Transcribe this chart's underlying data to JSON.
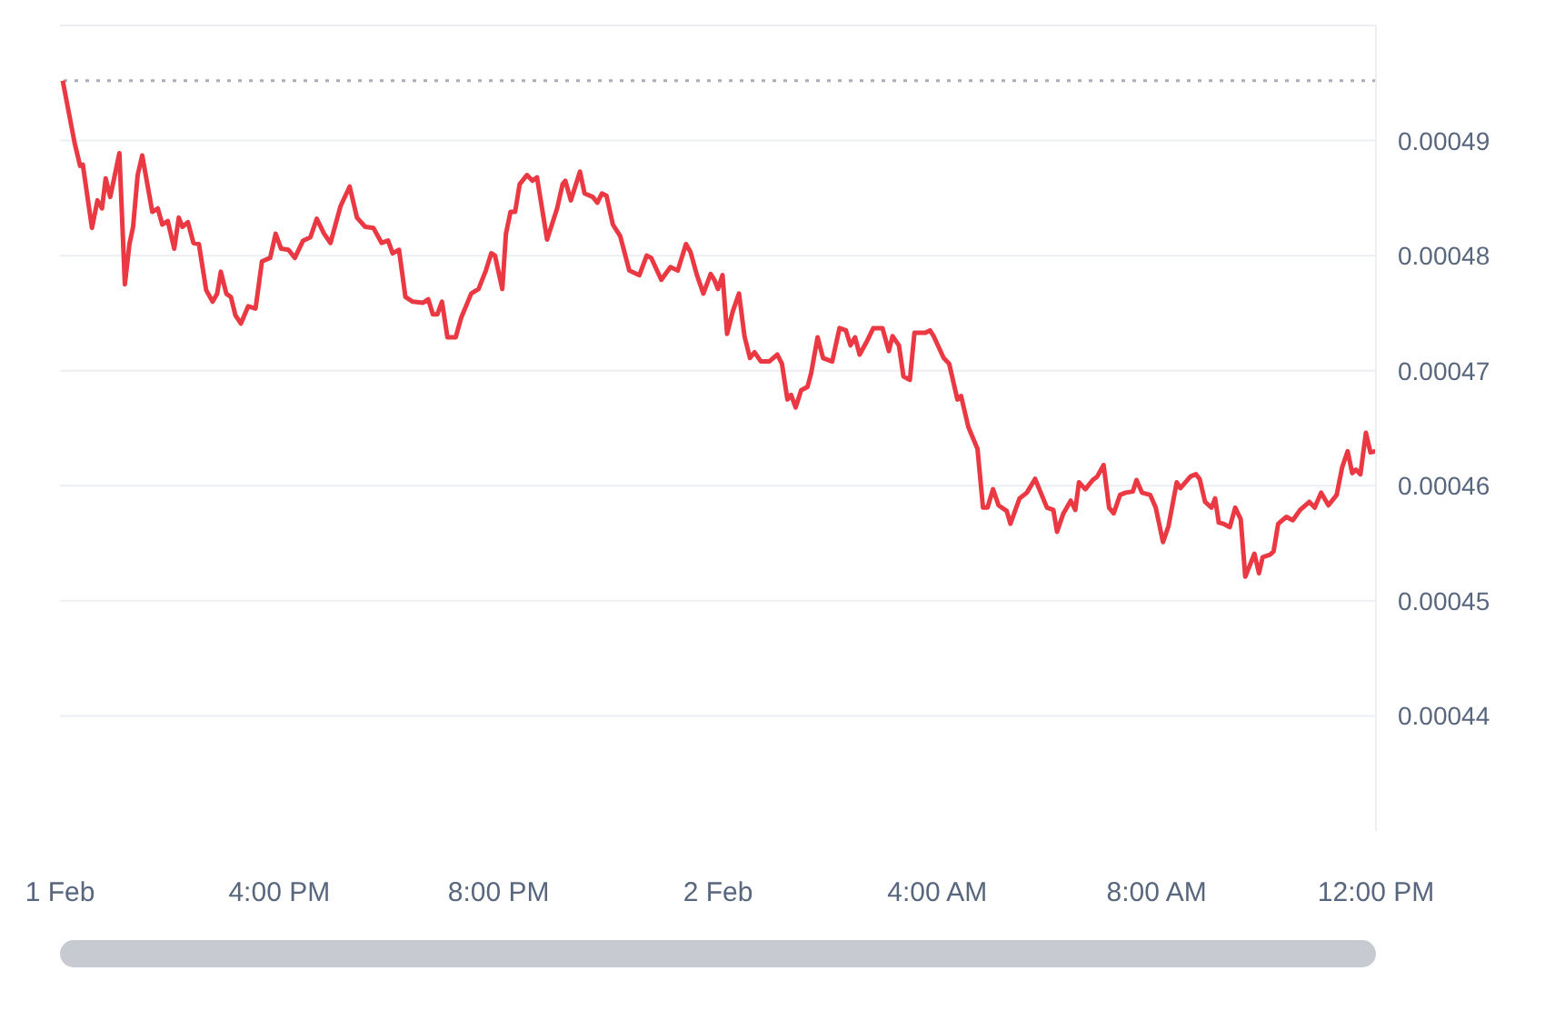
{
  "chart_data": {
    "type": "line",
    "x": [
      "--02-01T12:03",
      "--02-01T12:16",
      "--02-01T12:22",
      "--02-01T12:25",
      "--02-01T12:35",
      "--02-01T12:41",
      "--02-01T12:46",
      "--02-01T12:50",
      "--02-01T12:55",
      "--02-01T13:05",
      "--02-01T13:11",
      "--02-01T13:16",
      "--02-01T13:20",
      "--02-01T13:25",
      "--02-01T13:30",
      "--02-01T13:41",
      "--02-01T13:47",
      "--02-01T13:52",
      "--02-01T13:58",
      "--02-01T14:05",
      "--02-01T14:10",
      "--02-01T14:14",
      "--02-01T14:20",
      "--02-01T14:26",
      "--02-01T14:32",
      "--02-01T14:40",
      "--02-01T14:47",
      "--02-01T14:52",
      "--02-01T14:56",
      "--02-01T15:02",
      "--02-01T15:07",
      "--02-01T15:12",
      "--02-01T15:18",
      "--02-01T15:26",
      "--02-01T15:34",
      "--02-01T15:41",
      "--02-01T15:50",
      "--02-01T15:56",
      "--02-01T16:02",
      "--02-01T16:10",
      "--02-01T16:17",
      "--02-01T16:26",
      "--02-01T16:34",
      "--02-01T16:41",
      "--02-01T16:49",
      "--02-01T16:56",
      "--02-01T17:07",
      "--02-01T17:17",
      "--02-01T17:25",
      "--02-01T17:34",
      "--02-01T17:43",
      "--02-01T17:52",
      "--02-01T17:59",
      "--02-01T18:04",
      "--02-01T18:11",
      "--02-01T18:18",
      "--02-01T18:26",
      "--02-01T18:37",
      "--02-01T18:43",
      "--02-01T18:48",
      "--02-01T18:53",
      "--02-01T18:58",
      "--02-01T19:04",
      "--02-01T19:13",
      "--02-01T19:19",
      "--02-01T19:30",
      "--02-01T19:38",
      "--02-01T19:46",
      "--02-01T19:52",
      "--02-01T19:56",
      "--02-01T20:04",
      "--02-01T20:08",
      "--02-01T20:13",
      "--02-01T20:18",
      "--02-01T20:23",
      "--02-01T20:31",
      "--02-01T20:37",
      "--02-01T20:42",
      "--02-01T20:53",
      "--02-01T21:04",
      "--02-01T21:10",
      "--02-01T21:13",
      "--02-01T21:19",
      "--02-01T21:29",
      "--02-01T21:34",
      "--02-01T21:43",
      "--02-01T21:48",
      "--02-01T21:53",
      "--02-01T21:58",
      "--02-01T22:05",
      "--02-01T22:13",
      "--02-01T22:23",
      "--02-01T22:34",
      "--02-01T22:42",
      "--02-01T22:47",
      "--02-01T22:58",
      "--02-01T23:08",
      "--02-01T23:16",
      "--02-01T23:25",
      "--02-01T23:30",
      "--02-01T23:37",
      "--02-01T23:44",
      "--02-01T23:52",
      "--02-01T23:56",
      "--02-02T00:00",
      "--02-02T00:05",
      "--02-02T00:10",
      "--02-02T00:16",
      "--02-02T00:23",
      "--02-02T00:29",
      "--02-02T00:35",
      "--02-02T00:40",
      "--02-02T00:47",
      "--02-02T00:56",
      "--02-02T01:05",
      "--02-02T01:10",
      "--02-02T01:16",
      "--02-02T01:20",
      "--02-02T01:25",
      "--02-02T01:31",
      "--02-02T01:38",
      "--02-02T01:42",
      "--02-02T01:49",
      "--02-02T01:55",
      "--02-02T02:05",
      "--02-02T02:13",
      "--02-02T02:20",
      "--02-02T02:25",
      "--02-02T02:30",
      "--02-02T02:35",
      "--02-02T02:42",
      "--02-02T02:50",
      "--02-02T03:00",
      "--02-02T03:07",
      "--02-02T03:11",
      "--02-02T03:18",
      "--02-02T03:23",
      "--02-02T03:30",
      "--02-02T03:35",
      "--02-02T03:47",
      "--02-02T03:52",
      "--02-02T03:56",
      "--02-02T04:07",
      "--02-02T04:13",
      "--02-02T04:22",
      "--02-02T04:26",
      "--02-02T04:34",
      "--02-02T04:44",
      "--02-02T04:50",
      "--02-02T04:55",
      "--02-02T05:01",
      "--02-02T05:07",
      "--02-02T05:16",
      "--02-02T05:20",
      "--02-02T05:30",
      "--02-02T05:38",
      "--02-02T05:47",
      "--02-02T06:00",
      "--02-02T06:07",
      "--02-02T06:11",
      "--02-02T06:18",
      "--02-02T06:26",
      "--02-02T06:31",
      "--02-02T06:35",
      "--02-02T06:42",
      "--02-02T06:50",
      "--02-02T06:55",
      "--02-02T07:02",
      "--02-02T07:08",
      "--02-02T07:13",
      "--02-02T07:20",
      "--02-02T07:26",
      "--02-02T07:34",
      "--02-02T07:38",
      "--02-02T07:44",
      "--02-02T07:53",
      "--02-02T07:59",
      "--02-02T08:07",
      "--02-02T08:13",
      "--02-02T08:22",
      "--02-02T08:26",
      "--02-02T08:37",
      "--02-02T08:43",
      "--02-02T08:47",
      "--02-02T08:53",
      "--02-02T09:00",
      "--02-02T09:04",
      "--02-02T09:08",
      "--02-02T09:13",
      "--02-02T09:20",
      "--02-02T09:26",
      "--02-02T09:32",
      "--02-02T09:37",
      "--02-02T09:43",
      "--02-02T09:47",
      "--02-02T09:52",
      "--02-02T09:56",
      "--02-02T10:04",
      "--02-02T10:08",
      "--02-02T10:13",
      "--02-02T10:22",
      "--02-02T10:29",
      "--02-02T10:37",
      "--02-02T10:47",
      "--02-02T10:53",
      "--02-02T11:00",
      "--02-02T11:08",
      "--02-02T11:17",
      "--02-02T11:23",
      "--02-02T11:29",
      "--02-02T11:34",
      "--02-02T11:38",
      "--02-02T11:43",
      "--02-02T11:49",
      "--02-02T11:54",
      "--02-02T12:00"
    ],
    "series": [
      {
        "color": "#ea3943",
        "values": [
          0.0004952,
          0.0004898,
          0.0004878,
          0.0004879,
          0.0004824,
          0.0004848,
          0.0004841,
          0.0004867,
          0.0004851,
          0.0004889,
          0.0004775,
          0.000481,
          0.0004825,
          0.000487,
          0.0004887,
          0.0004838,
          0.0004841,
          0.0004827,
          0.000483,
          0.0004806,
          0.0004833,
          0.0004825,
          0.0004829,
          0.0004811,
          0.000481,
          0.000477,
          0.000476,
          0.0004767,
          0.0004786,
          0.0004767,
          0.0004764,
          0.0004748,
          0.0004741,
          0.0004756,
          0.0004754,
          0.0004795,
          0.0004798,
          0.0004819,
          0.0004806,
          0.0004805,
          0.0004798,
          0.0004813,
          0.0004816,
          0.0004832,
          0.0004819,
          0.0004811,
          0.0004843,
          0.000486,
          0.0004833,
          0.0004825,
          0.0004824,
          0.0004811,
          0.0004813,
          0.0004802,
          0.0004805,
          0.0004764,
          0.000476,
          0.0004759,
          0.0004762,
          0.0004749,
          0.0004749,
          0.000476,
          0.0004729,
          0.0004729,
          0.0004746,
          0.0004767,
          0.0004771,
          0.0004787,
          0.0004802,
          0.00048,
          0.0004771,
          0.0004819,
          0.0004838,
          0.0004838,
          0.0004862,
          0.000487,
          0.0004865,
          0.0004868,
          0.0004814,
          0.0004841,
          0.0004862,
          0.0004865,
          0.0004848,
          0.0004873,
          0.0004854,
          0.0004851,
          0.0004846,
          0.0004854,
          0.0004852,
          0.0004827,
          0.0004817,
          0.0004787,
          0.0004783,
          0.00048,
          0.0004798,
          0.0004779,
          0.000479,
          0.0004787,
          0.000481,
          0.0004803,
          0.0004783,
          0.0004767,
          0.0004784,
          0.0004779,
          0.0004771,
          0.0004783,
          0.0004732,
          0.0004751,
          0.0004767,
          0.000473,
          0.0004711,
          0.0004716,
          0.0004708,
          0.0004708,
          0.0004714,
          0.0004706,
          0.0004675,
          0.0004679,
          0.0004668,
          0.0004683,
          0.0004686,
          0.0004698,
          0.0004729,
          0.0004711,
          0.0004708,
          0.0004737,
          0.0004735,
          0.0004722,
          0.0004729,
          0.0004714,
          0.0004724,
          0.0004737,
          0.0004737,
          0.0004717,
          0.000473,
          0.0004722,
          0.0004695,
          0.0004692,
          0.0004733,
          0.0004733,
          0.0004735,
          0.000473,
          0.0004711,
          0.0004706,
          0.0004675,
          0.0004678,
          0.0004651,
          0.0004632,
          0.0004581,
          0.0004581,
          0.0004597,
          0.0004583,
          0.0004578,
          0.0004567,
          0.0004589,
          0.0004594,
          0.0004606,
          0.0004581,
          0.0004579,
          0.000456,
          0.0004576,
          0.0004587,
          0.0004579,
          0.0004603,
          0.0004597,
          0.0004605,
          0.0004608,
          0.0004618,
          0.0004581,
          0.0004576,
          0.0004592,
          0.0004594,
          0.0004595,
          0.0004605,
          0.0004594,
          0.0004592,
          0.0004581,
          0.0004551,
          0.0004565,
          0.0004603,
          0.0004598,
          0.0004608,
          0.000461,
          0.0004606,
          0.0004586,
          0.0004581,
          0.0004589,
          0.0004568,
          0.0004567,
          0.0004564,
          0.0004581,
          0.0004571,
          0.0004521,
          0.0004533,
          0.0004541,
          0.0004524,
          0.0004538,
          0.000454,
          0.0004543,
          0.0004567,
          0.0004573,
          0.000457,
          0.0004579,
          0.0004586,
          0.0004581,
          0.0004594,
          0.0004583,
          0.0004592,
          0.0004616,
          0.000463,
          0.0004611,
          0.0004614,
          0.000461,
          0.0004646,
          0.0004629,
          0.000463
        ]
      }
    ],
    "ref_lines": [
      {
        "axis": "y",
        "value": 0.0004952,
        "color": "#a8adb8",
        "line_style": "dotted"
      }
    ],
    "xlim": [
      "--02-01T12:00",
      "--02-02T12:00"
    ],
    "xticks": [
      {
        "value": "--02-01T12:00",
        "label": "1 Feb"
      },
      {
        "value": "--02-01T16:00",
        "label": "4:00 PM"
      },
      {
        "value": "--02-01T20:00",
        "label": "8:00 PM"
      },
      {
        "value": "--02-02T00:00",
        "label": "2 Feb"
      },
      {
        "value": "--02-02T04:00",
        "label": "4:00 AM"
      },
      {
        "value": "--02-02T08:00",
        "label": "8:00 AM"
      },
      {
        "value": "--02-02T12:00",
        "label": "12:00 PM"
      }
    ],
    "ylim": [
      0.00043,
      0.0005
    ],
    "yticks": [
      0.00044,
      0.00045,
      0.00046,
      0.00047,
      0.00048,
      0.00049,
      {
        "value": 0.0005,
        "label": null
      }
    ],
    "grid": "y",
    "marker": "none"
  }
}
